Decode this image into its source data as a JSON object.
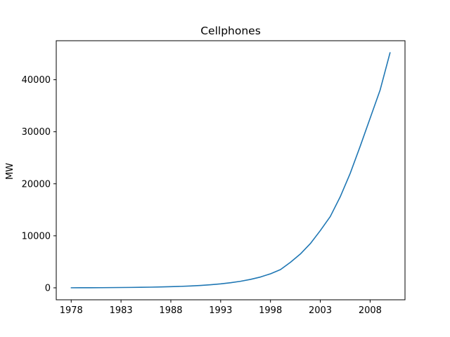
{
  "chart_data": {
    "type": "line",
    "title": "Cellphones",
    "xlabel": "",
    "ylabel": "MW",
    "xlim": [
      1976.5,
      2011.5
    ],
    "ylim": [
      -2300,
      47500
    ],
    "x_ticks": [
      1978,
      1983,
      1988,
      1993,
      1998,
      2003,
      2008
    ],
    "y_ticks": [
      0,
      10000,
      20000,
      30000,
      40000
    ],
    "grid": false,
    "series": [
      {
        "color": "#1f77b4",
        "x": [
          1978,
          1979,
          1980,
          1981,
          1982,
          1983,
          1984,
          1985,
          1986,
          1987,
          1988,
          1989,
          1990,
          1991,
          1992,
          1993,
          1994,
          1995,
          1996,
          1997,
          1998,
          1999,
          2000,
          2001,
          2002,
          2003,
          2004,
          2005,
          2006,
          2007,
          2008,
          2009,
          2010
        ],
        "y": [
          10,
          15,
          20,
          30,
          45,
          60,
          80,
          100,
          130,
          170,
          220,
          280,
          360,
          460,
          590,
          760,
          980,
          1260,
          1620,
          2080,
          2700,
          3500,
          4900,
          6500,
          8500,
          11000,
          13700,
          17500,
          22000,
          27200,
          32600,
          38000,
          45200
        ]
      }
    ]
  }
}
